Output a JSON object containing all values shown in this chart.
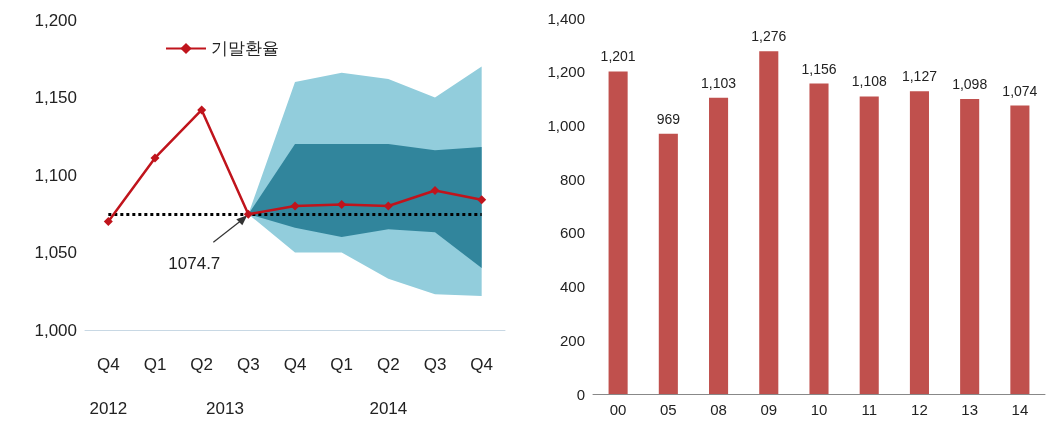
{
  "chart_data": [
    {
      "type": "line",
      "categories": [
        "Q4",
        "Q1",
        "Q2",
        "Q3",
        "Q4",
        "Q1",
        "Q2",
        "Q3",
        "Q4"
      ],
      "series": [
        {
          "type": "area",
          "color": "#92cddc",
          "values": [
            null,
            null,
            null,
            null,
            null,
            null,
            null,
            null,
            null
          ],
          "lower": [
            null,
            null,
            null,
            1074.7,
            1050,
            1050,
            1033,
            1023,
            1022
          ],
          "upper": [
            null,
            null,
            null,
            1074.7,
            1160,
            1166,
            1162,
            1150,
            1170
          ]
        },
        {
          "type": "area",
          "color": "#31859c",
          "values": [
            null,
            null,
            null,
            null,
            null,
            null,
            null,
            null,
            null
          ],
          "lower": [
            null,
            null,
            null,
            1074.7,
            1066,
            1060,
            1065,
            1063,
            1040
          ],
          "upper": [
            null,
            null,
            null,
            1074.7,
            1120,
            1120,
            1120,
            1116,
            1118
          ]
        },
        {
          "name": "기말환율",
          "color": "#c0141c",
          "marker": "diamond",
          "values": [
            1070,
            1111,
            1142,
            1074.7,
            1080,
            1081,
            1080,
            1090,
            1084
          ]
        }
      ],
      "legend": "top left",
      "ylim": [
        1000,
        1200
      ],
      "yticks": [
        {
          "value": 1000,
          "label": "1,000"
        },
        {
          "value": 1050,
          "label": "1,050"
        },
        {
          "value": 1100,
          "label": "1,100"
        },
        {
          "value": 1150,
          "label": "1,150"
        },
        {
          "value": 1200,
          "label": "1,200"
        }
      ],
      "ref_lines": [
        {
          "axis": "y",
          "value": 1074.7,
          "line_style": "dotted",
          "color": "#000000"
        }
      ],
      "annotations": [
        {
          "text": "1074.7",
          "y": 1074.7
        },
        "2012",
        "2013",
        "2014"
      ]
    },
    {
      "type": "bar",
      "categories": [
        "00",
        "05",
        "08",
        "09",
        "10",
        "11",
        "12",
        "13",
        "14"
      ],
      "values": [
        1201,
        969,
        1103,
        1276,
        1156,
        1108,
        1127,
        1098,
        1074
      ],
      "color": "#c0504d",
      "ylim": [
        0,
        1400
      ],
      "yticks": [
        0,
        {
          "value": 200,
          "label": "200"
        },
        {
          "value": 400,
          "label": "400"
        },
        {
          "value": 600,
          "label": "600"
        },
        {
          "value": 800,
          "label": "800"
        },
        {
          "value": 1000,
          "label": "1,000"
        },
        {
          "value": 1200,
          "label": "1,200"
        },
        {
          "value": 1400,
          "label": "1,400"
        }
      ],
      "value_labels": [
        "1,201",
        "969",
        "1,103",
        "1,276",
        "1,156",
        "1,108",
        "1,127",
        "1,098",
        "1,074"
      ]
    }
  ]
}
